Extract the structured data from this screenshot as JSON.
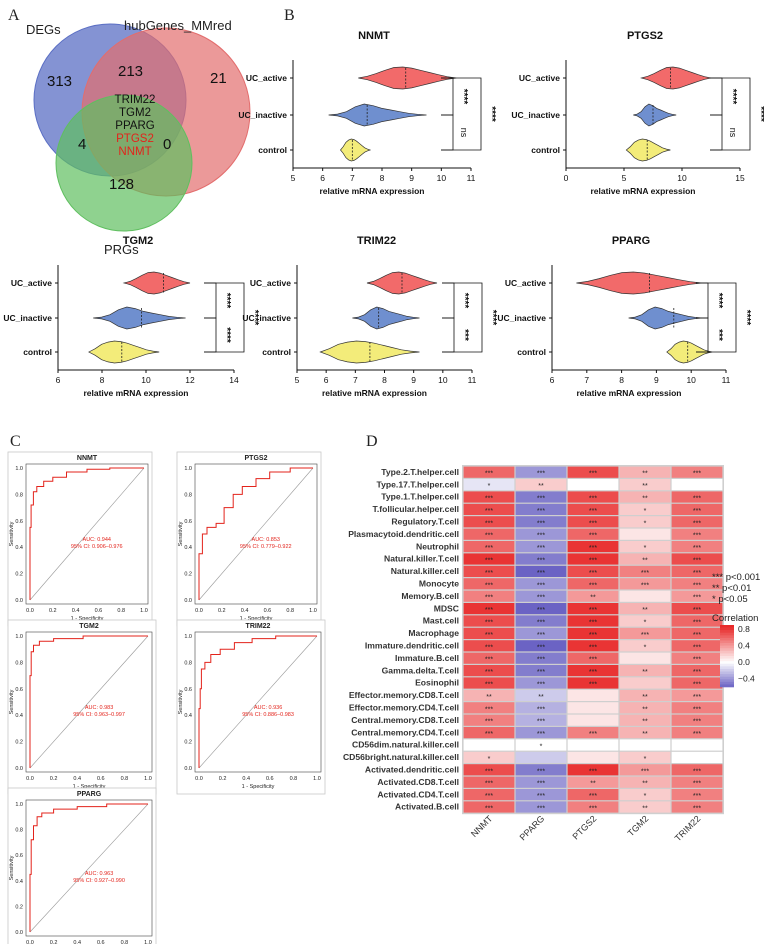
{
  "panels": {
    "A": "A",
    "B": "B",
    "C": "C",
    "D": "D"
  },
  "venn": {
    "labels": {
      "degs": "DEGs",
      "hub": "hubGenes_MMred",
      "prgs": "PRGs"
    },
    "counts": {
      "degs_only": "313",
      "degs_hub": "213",
      "hub_only": "21",
      "degs_prgs": "4",
      "hub_prgs": "0",
      "prgs_only": "128"
    },
    "center_genes": [
      "TRIM22",
      "TGM2",
      "PPARG",
      "PTGS2",
      "NNMT"
    ],
    "center_gene_colors": [
      "#111111",
      "#111111",
      "#111111",
      "#e3231b",
      "#e3231b"
    ],
    "colors": {
      "degs": "#5b6fc4",
      "hub": "#e36d6d",
      "prgs": "#5fbf5f"
    }
  },
  "violin_plots": {
    "groups": [
      "UC_active",
      "UC_inactive",
      "control"
    ],
    "group_colors": [
      "#f26a6a",
      "#6f8fcf",
      "#f3ec7a"
    ],
    "xlabel": "relative mRNA expression",
    "sig": {
      "active_inactive": "****",
      "active_control": "****",
      "inactive_control_top": "ns"
    },
    "plots": [
      {
        "gene": "NNMT",
        "xlim": [
          5,
          11
        ],
        "ticks": [
          "5",
          "6",
          "7",
          "8",
          "9",
          "10",
          "11"
        ],
        "medians": [
          8.8,
          7.5,
          7.0
        ],
        "ranges": [
          [
            7.2,
            10.5
          ],
          [
            6.2,
            9.5
          ],
          [
            6.6,
            7.6
          ]
        ],
        "sig": [
          "****",
          "****",
          "ns"
        ]
      },
      {
        "gene": "PTGS2",
        "xlim": [
          0,
          15
        ],
        "ticks": [
          "0",
          "5",
          "10",
          "15"
        ],
        "medians": [
          9.0,
          7.5,
          7.0
        ],
        "ranges": [
          [
            6.5,
            12.5
          ],
          [
            5.8,
            9.5
          ],
          [
            5.2,
            9.0
          ]
        ],
        "sig": [
          "****",
          "****",
          "ns"
        ]
      },
      {
        "gene": "TGM2",
        "xlim": [
          6,
          14
        ],
        "ticks": [
          "6",
          "8",
          "10",
          "12",
          "14"
        ],
        "medians": [
          10.8,
          9.8,
          8.9
        ],
        "ranges": [
          [
            9.0,
            12.0
          ],
          [
            7.6,
            11.8
          ],
          [
            7.4,
            10.6
          ]
        ],
        "sig": [
          "****",
          "****",
          "****"
        ]
      },
      {
        "gene": "TRIM22",
        "xlim": [
          5,
          11
        ],
        "ticks": [
          "5",
          "6",
          "7",
          "8",
          "9",
          "10",
          "11"
        ],
        "medians": [
          8.6,
          7.8,
          7.5
        ],
        "ranges": [
          [
            7.4,
            9.8
          ],
          [
            6.9,
            9.2
          ],
          [
            5.8,
            9.2
          ]
        ],
        "sig": [
          "****",
          "****",
          "***"
        ]
      },
      {
        "gene": "PPARG",
        "xlim": [
          6,
          11
        ],
        "ticks": [
          "6",
          "7",
          "8",
          "9",
          "10",
          "11"
        ],
        "medians": [
          8.8,
          9.5,
          9.9
        ],
        "ranges": [
          [
            6.7,
            10.3
          ],
          [
            8.2,
            10.3
          ],
          [
            9.3,
            10.6
          ]
        ],
        "sig": [
          "****",
          "****",
          "***"
        ]
      }
    ]
  },
  "roc_curves": {
    "xlabel": "1 - Specificity",
    "ylabel": "Sensitivity",
    "ticks": [
      "0.0",
      "0.2",
      "0.4",
      "0.6",
      "0.8",
      "1.0"
    ],
    "curves": [
      {
        "gene": "NNMT",
        "auc": "AUC: 0.944",
        "ci": "95% CI: 0.906–0.976"
      },
      {
        "gene": "PTGS2",
        "auc": "AUC: 0.853",
        "ci": "95% CI: 0.779–0.922"
      },
      {
        "gene": "TGM2",
        "auc": "AUC: 0.983",
        "ci": "95% CI: 0.963–0.997"
      },
      {
        "gene": "TRIM22",
        "auc": "AUC: 0.936",
        "ci": "95% CI: 0.886–0.983"
      },
      {
        "gene": "PPARG",
        "auc": "AUC: 0.963",
        "ci": "95% CI: 0.927–0.990"
      }
    ]
  },
  "chart_data": {
    "type": "heatmap",
    "title": "",
    "columns": [
      "NNMT",
      "PPARG",
      "PTGS2",
      "TGM2",
      "TRIM22"
    ],
    "rows": [
      "Type.2.T.helper.cell",
      "Type.17.T.helper.cell",
      "Type.1.T.helper.cell",
      "T.follicular.helper.cell",
      "Regulatory.T.cell",
      "Plasmacytoid.dendritic.cell",
      "Neutrophil",
      "Natural.killer.T.cell",
      "Natural.killer.cell",
      "Monocyte",
      "Memory.B.cell",
      "MDSC",
      "Mast.cell",
      "Macrophage",
      "Immature.dendritic.cell",
      "Immature.B.cell",
      "Gamma.delta.T.cell",
      "Eosinophil",
      "Effector.memory.CD8.T.cell",
      "Effector.memory.CD4.T.cell",
      "Central.memory.CD8.T.cell",
      "Central.memory.CD4.T.cell",
      "CD56dim.natural.killer.cell",
      "CD56bright.natural.killer.cell",
      "Activated.dendritic.cell",
      "Activated.CD8.T.cell",
      "Activated.CD4.T.cell",
      "Activated.B.cell"
    ],
    "values": [
      [
        0.6,
        -0.4,
        0.7,
        0.3,
        0.5
      ],
      [
        -0.1,
        0.2,
        0.0,
        0.2,
        0.0
      ],
      [
        0.7,
        -0.5,
        0.7,
        0.3,
        0.6
      ],
      [
        0.7,
        -0.5,
        0.7,
        0.2,
        0.6
      ],
      [
        0.7,
        -0.5,
        0.7,
        0.2,
        0.6
      ],
      [
        0.6,
        -0.4,
        0.6,
        0.1,
        0.5
      ],
      [
        0.6,
        -0.4,
        0.8,
        0.2,
        0.5
      ],
      [
        0.8,
        -0.5,
        0.8,
        0.3,
        0.7
      ],
      [
        0.7,
        -0.6,
        0.7,
        0.5,
        0.6
      ],
      [
        0.6,
        -0.4,
        0.6,
        0.4,
        0.5
      ],
      [
        0.5,
        -0.4,
        0.4,
        0.1,
        0.4
      ],
      [
        0.8,
        -0.6,
        0.8,
        0.3,
        0.7
      ],
      [
        0.7,
        -0.5,
        0.8,
        0.2,
        0.6
      ],
      [
        0.7,
        -0.4,
        0.8,
        0.4,
        0.6
      ],
      [
        0.7,
        -0.6,
        0.8,
        0.2,
        0.6
      ],
      [
        0.6,
        -0.5,
        0.6,
        0.1,
        0.5
      ],
      [
        0.7,
        -0.5,
        0.8,
        0.3,
        0.6
      ],
      [
        0.7,
        -0.4,
        0.8,
        0.2,
        0.6
      ],
      [
        0.3,
        -0.2,
        0.1,
        0.3,
        0.4
      ],
      [
        0.5,
        -0.3,
        0.1,
        0.3,
        0.5
      ],
      [
        0.5,
        -0.3,
        0.1,
        0.3,
        0.5
      ],
      [
        0.6,
        -0.4,
        0.5,
        0.3,
        0.5
      ],
      [
        0.0,
        0.0,
        0.0,
        0.0,
        0.0
      ],
      [
        0.2,
        -0.2,
        0.1,
        0.2,
        0.0
      ],
      [
        0.7,
        -0.5,
        0.8,
        0.4,
        0.6
      ],
      [
        0.6,
        -0.4,
        0.4,
        0.3,
        0.5
      ],
      [
        0.6,
        -0.4,
        0.6,
        0.2,
        0.5
      ],
      [
        0.6,
        -0.4,
        0.5,
        0.2,
        0.5
      ]
    ],
    "stars": [
      [
        "***",
        "***",
        "***",
        "**",
        "***"
      ],
      [
        "*",
        "**",
        "",
        "**",
        ""
      ],
      [
        "***",
        "***",
        "***",
        "**",
        "***"
      ],
      [
        "***",
        "***",
        "***",
        "*",
        "***"
      ],
      [
        "***",
        "***",
        "***",
        "*",
        "***"
      ],
      [
        "***",
        "***",
        "***",
        "",
        "***"
      ],
      [
        "***",
        "***",
        "***",
        "*",
        "***"
      ],
      [
        "***",
        "***",
        "***",
        "**",
        "***"
      ],
      [
        "***",
        "***",
        "***",
        "***",
        "***"
      ],
      [
        "***",
        "***",
        "***",
        "***",
        "***"
      ],
      [
        "***",
        "***",
        "**",
        "",
        "***"
      ],
      [
        "***",
        "***",
        "***",
        "**",
        "***"
      ],
      [
        "***",
        "***",
        "***",
        "*",
        "***"
      ],
      [
        "***",
        "***",
        "***",
        "***",
        "***"
      ],
      [
        "***",
        "***",
        "***",
        "*",
        "***"
      ],
      [
        "***",
        "***",
        "***",
        "",
        "***"
      ],
      [
        "***",
        "***",
        "***",
        "**",
        "***"
      ],
      [
        "***",
        "***",
        "***",
        "",
        "***"
      ],
      [
        "**",
        "**",
        "",
        "**",
        "***"
      ],
      [
        "***",
        "***",
        "",
        "**",
        "***"
      ],
      [
        "***",
        "***",
        "",
        "**",
        "***"
      ],
      [
        "***",
        "***",
        "***",
        "**",
        "***"
      ],
      [
        "",
        "*",
        "",
        "",
        ""
      ],
      [
        "*",
        "",
        "",
        "*",
        ""
      ],
      [
        "***",
        "***",
        "***",
        "***",
        "***"
      ],
      [
        "***",
        "***",
        "**",
        "**",
        "***"
      ],
      [
        "***",
        "***",
        "***",
        "*",
        "***"
      ],
      [
        "***",
        "***",
        "***",
        "**",
        "***"
      ]
    ],
    "legend": {
      "title": "Correlation",
      "ticks": [
        "0.8",
        "0.4",
        "0.0",
        "−0.4"
      ],
      "tick_values": [
        0.8,
        0.4,
        0.0,
        -0.4
      ],
      "range": [
        -0.6,
        0.9
      ],
      "sig_legend": [
        "***  p<0.001",
        "**  p<0.01",
        "*  p<0.05"
      ]
    }
  }
}
